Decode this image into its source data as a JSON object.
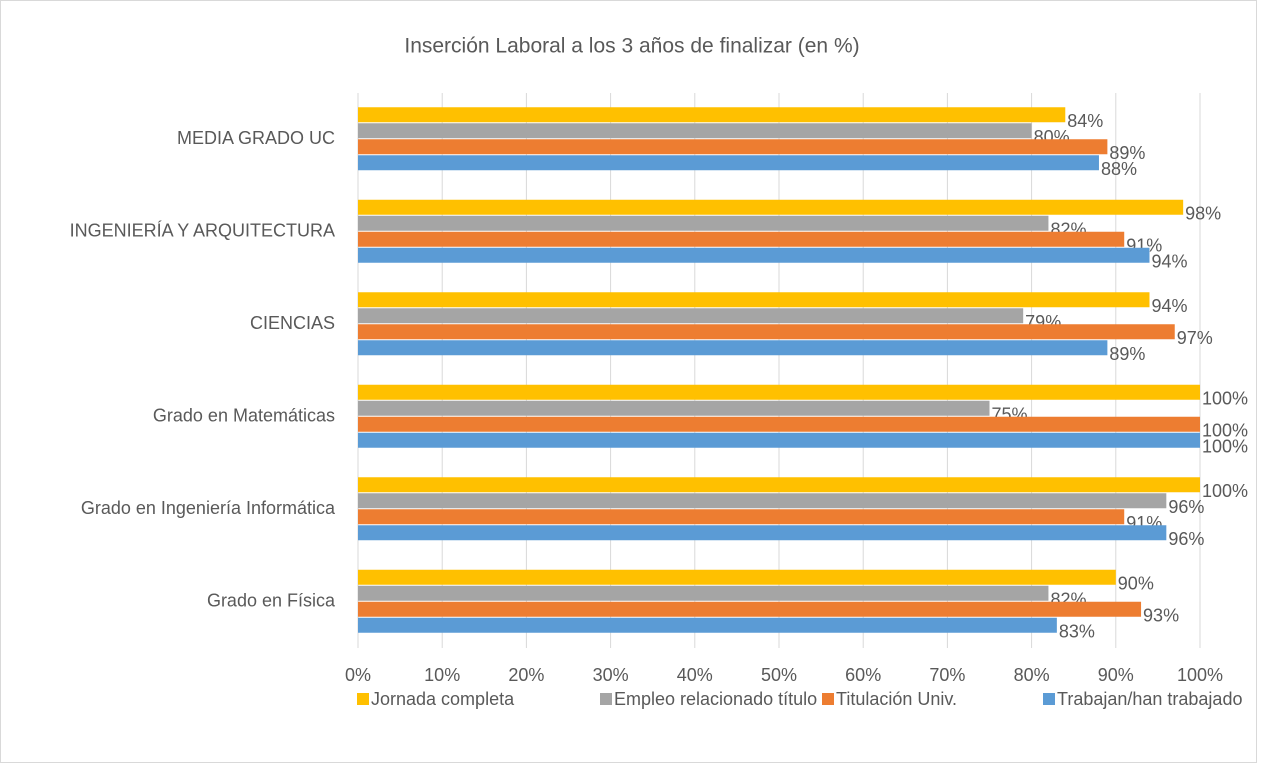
{
  "chart_data": {
    "type": "bar",
    "orientation": "horizontal",
    "title": "Inserción Laboral a los 3 años de finalizar (en %)",
    "categories": [
      "MEDIA GRADO UC",
      "INGENIERÍA Y ARQUITECTURA",
      "CIENCIAS",
      "Grado en Matemáticas",
      "Grado en Ingeniería Informática",
      "Grado en Física"
    ],
    "series": [
      {
        "name": "Jornada completa",
        "color": "#ffc000",
        "values": [
          84,
          98,
          94,
          100,
          100,
          90
        ],
        "value_labels": [
          "84%",
          "98%",
          "94%",
          "100%",
          "100%",
          "90%"
        ]
      },
      {
        "name": "Empleo relacionado título",
        "color": "#a5a5a5",
        "values": [
          80,
          82,
          79,
          75,
          96,
          82
        ],
        "value_labels": [
          "80%",
          "82%",
          "79%",
          "75%",
          "96%",
          "82%"
        ]
      },
      {
        "name": "Titulación Univ.",
        "color": "#ed7d31",
        "values": [
          89,
          91,
          97,
          100,
          91,
          93
        ],
        "value_labels": [
          "89%",
          "91%",
          "97%",
          "100%",
          "91%",
          "93%"
        ]
      },
      {
        "name": "Trabajan/han trabajado",
        "color": "#5b9bd5",
        "values": [
          88,
          94,
          89,
          100,
          96,
          83
        ],
        "value_labels": [
          "88%",
          "94%",
          "89%",
          "100%",
          "96%",
          "83%"
        ]
      }
    ],
    "xlim": [
      0,
      100
    ],
    "xticks": [
      {
        "value": 0,
        "label": "0%"
      },
      {
        "value": 10,
        "label": "10%"
      },
      {
        "value": 20,
        "label": "20%"
      },
      {
        "value": 30,
        "label": "30%"
      },
      {
        "value": 40,
        "label": "40%"
      },
      {
        "value": 50,
        "label": "50%"
      },
      {
        "value": 60,
        "label": "60%"
      },
      {
        "value": 70,
        "label": "70%"
      },
      {
        "value": 80,
        "label": "80%"
      },
      {
        "value": 90,
        "label": "90%"
      },
      {
        "value": 100,
        "label": "100%"
      }
    ],
    "grid": true,
    "legend": "bottom"
  }
}
